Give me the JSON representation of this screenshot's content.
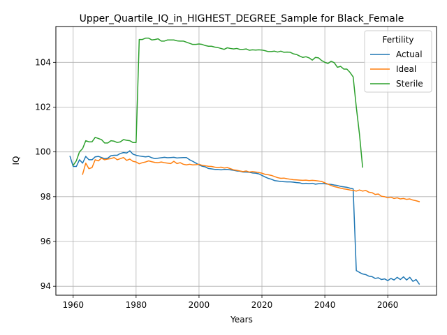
{
  "chart_data": {
    "type": "line",
    "title": "Upper_Quartile_IQ_in_HIGHEST_DEGREE_Sample for Black_Female",
    "xlabel": "Years",
    "ylabel": "IQ",
    "xlim": [
      1954.5,
      2075.5
    ],
    "ylim": [
      93.6,
      105.6
    ],
    "xticks": [
      1960,
      1980,
      2000,
      2020,
      2040,
      2060
    ],
    "yticks": [
      94,
      96,
      98,
      100,
      102,
      104
    ],
    "grid": true,
    "legend": {
      "title": "Fertility",
      "position": "top-right"
    },
    "series": [
      {
        "name": "Actual",
        "color": "#1f77b4",
        "x": [
          1959,
          1960,
          1961,
          1962,
          1963,
          1964,
          1965,
          1966,
          1967,
          1968,
          1969,
          1970,
          1971,
          1972,
          1973,
          1974,
          1975,
          1976,
          1977,
          1978,
          1979,
          1980,
          1981,
          1982,
          1983,
          1984,
          1985,
          1986,
          1987,
          1988,
          1989,
          1990,
          1991,
          1992,
          1993,
          1994,
          1995,
          1996,
          1997,
          1998,
          1999,
          2000,
          2001,
          2002,
          2003,
          2004,
          2005,
          2006,
          2007,
          2008,
          2009,
          2010,
          2011,
          2012,
          2013,
          2014,
          2015,
          2016,
          2017,
          2018,
          2019,
          2020,
          2021,
          2022,
          2023,
          2024,
          2025,
          2026,
          2027,
          2028,
          2029,
          2030,
          2031,
          2032,
          2033,
          2034,
          2035,
          2036,
          2037,
          2038,
          2039,
          2040,
          2041,
          2042,
          2043,
          2044,
          2045,
          2046,
          2047,
          2048,
          2049,
          2050,
          2051,
          2052,
          2053,
          2054,
          2055,
          2056,
          2057,
          2058,
          2059,
          2060,
          2061,
          2062,
          2063,
          2064,
          2065,
          2066,
          2067,
          2068,
          2069,
          2070
        ],
        "y": [
          99.8,
          99.35,
          99.35,
          99.65,
          99.5,
          99.8,
          99.65,
          99.65,
          99.78,
          99.8,
          99.75,
          99.7,
          99.72,
          99.83,
          99.85,
          99.85,
          99.93,
          99.97,
          99.95,
          100.05,
          99.9,
          99.85,
          99.82,
          99.8,
          99.78,
          99.8,
          99.74,
          99.7,
          99.72,
          99.74,
          99.76,
          99.74,
          99.75,
          99.76,
          99.73,
          99.74,
          99.75,
          99.75,
          99.65,
          99.58,
          99.5,
          99.42,
          99.36,
          99.33,
          99.26,
          99.24,
          99.22,
          99.22,
          99.2,
          99.22,
          99.22,
          99.2,
          99.18,
          99.15,
          99.14,
          99.1,
          99.1,
          99.09,
          99.06,
          99.05,
          99.02,
          98.95,
          98.88,
          98.82,
          98.78,
          98.72,
          98.7,
          98.68,
          98.67,
          98.66,
          98.66,
          98.65,
          98.63,
          98.62,
          98.58,
          98.6,
          98.58,
          98.6,
          98.56,
          98.58,
          98.58,
          98.58,
          98.56,
          98.55,
          98.52,
          98.5,
          98.46,
          98.44,
          98.42,
          98.38,
          98.35,
          94.7,
          94.62,
          94.55,
          94.52,
          94.45,
          94.43,
          94.35,
          94.38,
          94.3,
          94.33,
          94.25,
          94.35,
          94.28,
          94.4,
          94.3,
          94.42,
          94.28,
          94.4,
          94.22,
          94.3,
          94.1
        ]
      },
      {
        "name": "Ideal",
        "color": "#ff7f0e",
        "x": [
          1963,
          1964,
          1965,
          1966,
          1967,
          1968,
          1969,
          1970,
          1971,
          1972,
          1973,
          1974,
          1975,
          1976,
          1977,
          1978,
          1979,
          1980,
          1981,
          1982,
          1983,
          1984,
          1985,
          1986,
          1987,
          1988,
          1989,
          1990,
          1991,
          1992,
          1993,
          1994,
          1995,
          1996,
          1997,
          1998,
          1999,
          2000,
          2001,
          2002,
          2003,
          2004,
          2005,
          2006,
          2007,
          2008,
          2009,
          2010,
          2011,
          2012,
          2013,
          2014,
          2015,
          2016,
          2017,
          2018,
          2019,
          2020,
          2021,
          2022,
          2023,
          2024,
          2025,
          2026,
          2027,
          2028,
          2029,
          2030,
          2031,
          2032,
          2033,
          2034,
          2035,
          2036,
          2037,
          2038,
          2039,
          2040,
          2041,
          2042,
          2043,
          2044,
          2045,
          2046,
          2047,
          2048,
          2049,
          2050,
          2051,
          2052,
          2053,
          2054,
          2055,
          2056,
          2057,
          2058,
          2059,
          2060,
          2061,
          2062,
          2063,
          2064,
          2065,
          2066,
          2067,
          2068,
          2069,
          2070
        ],
        "y": [
          99.0,
          99.5,
          99.25,
          99.3,
          99.65,
          99.6,
          99.72,
          99.65,
          99.68,
          99.7,
          99.75,
          99.65,
          99.7,
          99.75,
          99.62,
          99.68,
          99.58,
          99.55,
          99.47,
          99.52,
          99.55,
          99.6,
          99.56,
          99.53,
          99.52,
          99.55,
          99.52,
          99.5,
          99.48,
          99.58,
          99.48,
          99.52,
          99.45,
          99.42,
          99.45,
          99.42,
          99.43,
          99.45,
          99.4,
          99.38,
          99.36,
          99.35,
          99.32,
          99.3,
          99.32,
          99.28,
          99.3,
          99.25,
          99.2,
          99.18,
          99.15,
          99.12,
          99.15,
          99.1,
          99.12,
          99.1,
          99.08,
          99.05,
          99.0,
          98.98,
          98.95,
          98.9,
          98.85,
          98.82,
          98.83,
          98.8,
          98.78,
          98.76,
          98.75,
          98.74,
          98.73,
          98.74,
          98.72,
          98.73,
          98.72,
          98.7,
          98.68,
          98.62,
          98.56,
          98.5,
          98.45,
          98.42,
          98.38,
          98.35,
          98.33,
          98.3,
          98.28,
          98.25,
          98.3,
          98.25,
          98.28,
          98.2,
          98.18,
          98.1,
          98.12,
          98.02,
          98.0,
          97.95,
          97.98,
          97.92,
          97.95,
          97.9,
          97.92,
          97.88,
          97.9,
          97.85,
          97.82,
          97.78
        ]
      },
      {
        "name": "Sterile",
        "color": "#2ca02c",
        "x": [
          1960,
          1961,
          1962,
          1963,
          1964,
          1965,
          1966,
          1967,
          1968,
          1969,
          1970,
          1971,
          1972,
          1973,
          1974,
          1975,
          1976,
          1977,
          1978,
          1979,
          1980,
          1981,
          1982,
          1983,
          1984,
          1985,
          1986,
          1987,
          1988,
          1989,
          1990,
          1991,
          1992,
          1993,
          1994,
          1995,
          1996,
          1997,
          1998,
          1999,
          2000,
          2001,
          2002,
          2003,
          2004,
          2005,
          2006,
          2007,
          2008,
          2009,
          2010,
          2011,
          2012,
          2013,
          2014,
          2015,
          2016,
          2017,
          2018,
          2019,
          2020,
          2021,
          2022,
          2023,
          2024,
          2025,
          2026,
          2027,
          2028,
          2029,
          2030,
          2031,
          2032,
          2033,
          2034,
          2035,
          2036,
          2037,
          2038,
          2039,
          2040,
          2041,
          2042,
          2043,
          2044,
          2045,
          2046,
          2047,
          2048,
          2049,
          2050,
          2051,
          2052
        ],
        "y": [
          99.4,
          99.6,
          100.0,
          100.15,
          100.5,
          100.45,
          100.45,
          100.65,
          100.6,
          100.55,
          100.4,
          100.4,
          100.5,
          100.48,
          100.42,
          100.45,
          100.55,
          100.52,
          100.5,
          100.42,
          100.42,
          105.02,
          105.02,
          105.08,
          105.08,
          105.0,
          105.02,
          105.05,
          104.95,
          104.95,
          105.0,
          105.0,
          105.0,
          104.96,
          104.95,
          104.95,
          104.9,
          104.85,
          104.8,
          104.8,
          104.82,
          104.8,
          104.75,
          104.72,
          104.72,
          104.68,
          104.66,
          104.62,
          104.58,
          104.65,
          104.62,
          104.6,
          104.62,
          104.58,
          104.58,
          104.6,
          104.54,
          104.56,
          104.55,
          104.56,
          104.55,
          104.52,
          104.48,
          104.48,
          104.5,
          104.46,
          104.5,
          104.45,
          104.46,
          104.45,
          104.38,
          104.35,
          104.28,
          104.22,
          104.25,
          104.2,
          104.1,
          104.22,
          104.2,
          104.08,
          104.0,
          103.95,
          104.05,
          103.98,
          103.78,
          103.82,
          103.7,
          103.7,
          103.55,
          103.35,
          102.0,
          100.8,
          99.32
        ]
      }
    ]
  }
}
